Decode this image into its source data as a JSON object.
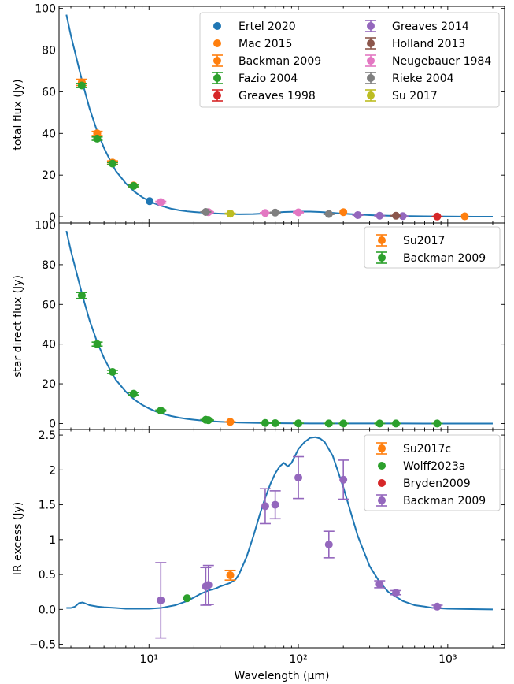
{
  "chart_data": [
    {
      "type": "scatter",
      "ylabel": "total flux (Jy)",
      "xlabel": "",
      "xscale": "log",
      "xlim": [
        2.5,
        2400
      ],
      "ylim": [
        -3,
        101
      ],
      "yticks": [
        0,
        20,
        40,
        60,
        80,
        100
      ],
      "legend": {
        "position": "top-right",
        "columns": 2
      },
      "model": {
        "name": "model",
        "color": "#1f77b4",
        "x": [
          2.8,
          3.0,
          3.3,
          3.6,
          4.0,
          4.5,
          5.0,
          5.5,
          6.0,
          7.0,
          8.0,
          9.0,
          10,
          11,
          12,
          14,
          16,
          18,
          20,
          25,
          30,
          40,
          50,
          60,
          70,
          80,
          100,
          120,
          140,
          160,
          200,
          250,
          300,
          400,
          500,
          700,
          1000,
          1500,
          2000
        ],
        "y": [
          97,
          87,
          75,
          64,
          52,
          41,
          33,
          27,
          22,
          16,
          12,
          9.4,
          7.6,
          6.3,
          5.3,
          3.9,
          3.1,
          2.6,
          2.3,
          1.8,
          1.5,
          1.2,
          1.3,
          1.6,
          2.0,
          2.3,
          2.5,
          2.5,
          2.3,
          2.0,
          1.5,
          1.1,
          0.8,
          0.5,
          0.35,
          0.2,
          0.1,
          0.05,
          0.03
        ]
      },
      "series": [
        {
          "name": "Ertel 2020",
          "color": "#1f77b4",
          "errorbar": false,
          "points": [
            [
              10.1,
              7.5
            ]
          ]
        },
        {
          "name": "Mac 2015",
          "color": "#ff7f0e",
          "errorbar": false,
          "points": [
            [
              3.55,
              64.5
            ],
            [
              4.5,
              40
            ],
            [
              5.7,
              26
            ],
            [
              7.9,
              15
            ],
            [
              35,
              1.5
            ],
            [
              200,
              2.2
            ],
            [
              1300,
              0.2
            ]
          ]
        },
        {
          "name": "Backman 2009",
          "color": "#ff7f0e",
          "errorbar": true,
          "points": [
            [
              3.55,
              64.5,
              1.5
            ],
            [
              4.5,
              40,
              1
            ],
            [
              5.7,
              26,
              0.8
            ],
            [
              7.9,
              15,
              0.6
            ]
          ]
        },
        {
          "name": "Fazio 2004",
          "color": "#2ca02c",
          "errorbar": true,
          "points": [
            [
              3.55,
              63,
              1
            ],
            [
              4.5,
              37.5,
              0.8
            ],
            [
              5.7,
              25.5,
              0.5
            ],
            [
              7.9,
              14.8,
              0.4
            ]
          ]
        },
        {
          "name": "Greaves 1998",
          "color": "#d62728",
          "errorbar": true,
          "points": [
            [
              850,
              0.1,
              0.02
            ]
          ]
        },
        {
          "name": "Greaves 2014",
          "color": "#9467bd",
          "errorbar": true,
          "points": [
            [
              250,
              0.8,
              0.1
            ],
            [
              350,
              0.5,
              0.08
            ],
            [
              500,
              0.3,
              0.05
            ]
          ]
        },
        {
          "name": "Holland 2013",
          "color": "#8c564b",
          "errorbar": true,
          "points": [
            [
              450,
              0.5,
              0.1
            ]
          ]
        },
        {
          "name": "Neugebauer 1984",
          "color": "#e377c2",
          "errorbar": true,
          "points": [
            [
              12,
              7,
              0.4
            ],
            [
              25,
              2.2,
              0.2
            ],
            [
              60,
              1.8,
              0.2
            ],
            [
              100,
              2.1,
              0.2
            ]
          ]
        },
        {
          "name": "Rieke 2004",
          "color": "#7f7f7f",
          "errorbar": true,
          "points": [
            [
              24,
              2.3,
              0.1
            ],
            [
              70,
              2.0,
              0.2
            ],
            [
              160,
              1.3,
              0.2
            ]
          ]
        },
        {
          "name": "Su 2017",
          "color": "#bcbd22",
          "errorbar": true,
          "points": [
            [
              35,
              1.5,
              0.2
            ]
          ]
        }
      ]
    },
    {
      "type": "scatter",
      "ylabel": "star direct flux (Jy)",
      "xlabel": "",
      "xscale": "log",
      "xlim": [
        2.5,
        2400
      ],
      "ylim": [
        -3,
        101
      ],
      "yticks": [
        0,
        20,
        40,
        60,
        80,
        100
      ],
      "legend": {
        "position": "top-right",
        "columns": 1
      },
      "model": {
        "name": "photosphere",
        "color": "#1f77b4",
        "x": [
          2.8,
          3.0,
          3.3,
          3.6,
          4.0,
          4.5,
          5.0,
          5.5,
          6.0,
          7.0,
          8.0,
          9.0,
          10,
          11,
          12,
          14,
          16,
          18,
          20,
          25,
          30,
          40,
          50,
          60,
          70,
          80,
          100,
          120,
          140,
          160,
          200,
          250,
          300,
          400,
          500,
          700,
          1000,
          1500,
          2000
        ],
        "y": [
          97,
          87,
          75,
          64,
          52,
          41,
          33,
          27,
          22,
          16,
          12,
          9.4,
          7.6,
          6.2,
          5.2,
          3.8,
          2.9,
          2.3,
          1.9,
          1.2,
          0.85,
          0.48,
          0.31,
          0.21,
          0.16,
          0.12,
          0.08,
          0.05,
          0.04,
          0.03,
          0.02,
          0.01,
          0.01,
          0.005,
          0.003,
          0.002,
          0.001,
          0.0005,
          0.0003
        ]
      },
      "series": [
        {
          "name": "Su2017",
          "color": "#ff7f0e",
          "errorbar": true,
          "points": [
            [
              35,
              0.85,
              0.05
            ]
          ]
        },
        {
          "name": "Backman 2009",
          "color": "#2ca02c",
          "errorbar": true,
          "points": [
            [
              3.55,
              64.5,
              1.5
            ],
            [
              4.5,
              40,
              1
            ],
            [
              5.7,
              26,
              0.8
            ],
            [
              7.9,
              15,
              0.6
            ],
            [
              12,
              6.5,
              0.3
            ],
            [
              24,
              1.9,
              0.1
            ],
            [
              25,
              1.7,
              0.1
            ],
            [
              60,
              0.28,
              0.02
            ],
            [
              70,
              0.2,
              0.02
            ],
            [
              100,
              0.1,
              0.01
            ],
            [
              160,
              0.04,
              0.01
            ],
            [
              200,
              0.025,
              0.01
            ],
            [
              350,
              0.008,
              0.002
            ],
            [
              450,
              0.005,
              0.002
            ],
            [
              850,
              0.002,
              0.001
            ]
          ]
        }
      ]
    },
    {
      "type": "scatter",
      "ylabel": "IR excess (Jy)",
      "xlabel": "Wavelength (μm)",
      "xscale": "log",
      "xlim": [
        2.5,
        2400
      ],
      "xticks": [
        10,
        100,
        1000
      ],
      "xticklabels": [
        "10¹",
        "10²",
        "10³"
      ],
      "ylim": [
        -0.55,
        2.58
      ],
      "yticks": [
        -0.5,
        0.0,
        0.5,
        1.0,
        1.5,
        2.0,
        2.5
      ],
      "legend": {
        "position": "top-right",
        "columns": 1
      },
      "model": {
        "name": "excess model",
        "color": "#1f77b4",
        "x": [
          2.8,
          3.0,
          3.2,
          3.4,
          3.6,
          3.8,
          4.0,
          4.5,
          5.0,
          6.0,
          7.0,
          8.0,
          10,
          12,
          15,
          18,
          20,
          22,
          25,
          28,
          30,
          33,
          35,
          38,
          40,
          45,
          50,
          55,
          60,
          65,
          70,
          75,
          80,
          85,
          90,
          95,
          100,
          110,
          120,
          130,
          140,
          150,
          170,
          200,
          250,
          300,
          350,
          400,
          500,
          600,
          700,
          800,
          1000,
          1300,
          1600,
          2000
        ],
        "y": [
          0.02,
          0.02,
          0.04,
          0.09,
          0.1,
          0.08,
          0.06,
          0.04,
          0.03,
          0.02,
          0.01,
          0.01,
          0.01,
          0.02,
          0.06,
          0.12,
          0.17,
          0.22,
          0.27,
          0.3,
          0.33,
          0.36,
          0.38,
          0.43,
          0.5,
          0.75,
          1.05,
          1.35,
          1.6,
          1.8,
          1.95,
          2.05,
          2.1,
          2.05,
          2.1,
          2.2,
          2.3,
          2.4,
          2.46,
          2.47,
          2.45,
          2.4,
          2.2,
          1.75,
          1.05,
          0.62,
          0.39,
          0.25,
          0.12,
          0.06,
          0.04,
          0.02,
          0.01,
          0.005,
          0.002,
          0.0
        ]
      },
      "series": [
        {
          "name": "Su2017c",
          "color": "#ff7f0e",
          "errorbar": true,
          "points": [
            [
              35,
              0.49,
              0.07
            ]
          ]
        },
        {
          "name": "Wolff2023a",
          "color": "#2ca02c",
          "errorbar": false,
          "points": [
            [
              18,
              0.16,
              0.0
            ]
          ]
        },
        {
          "name": "Bryden2009",
          "color": "#d62728",
          "errorbar": false,
          "points": []
        },
        {
          "name": "Backman 2009",
          "color": "#9467bd",
          "errorbar": true,
          "points": [
            [
              12,
              0.13,
              0.54
            ],
            [
              24,
              0.33,
              0.27
            ],
            [
              25,
              0.35,
              0.28
            ],
            [
              60,
              1.48,
              0.25
            ],
            [
              70,
              1.5,
              0.2
            ],
            [
              100,
              1.89,
              0.3
            ],
            [
              160,
              0.93,
              0.19
            ],
            [
              200,
              1.86,
              0.28
            ],
            [
              350,
              0.36,
              0.05
            ],
            [
              450,
              0.24,
              0.03
            ],
            [
              850,
              0.04,
              0.02
            ]
          ]
        }
      ]
    }
  ]
}
